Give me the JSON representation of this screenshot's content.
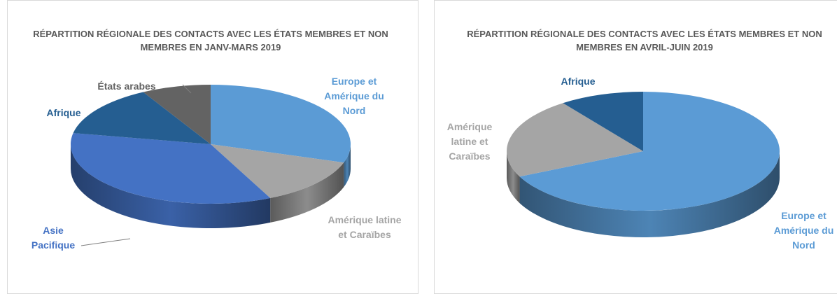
{
  "chart_data": [
    {
      "type": "pie",
      "title": "RÉPARTITION RÉGIONALE DES CONTACTS AVEC LES ÉTATS MEMBRES ET NON MEMBRES EN JANV-MARS 2019",
      "categories": [
        "Europe et Amérique du Nord",
        "Amérique latine et Caraïbes",
        "Asie Pacifique",
        "Afrique",
        "États arabes"
      ],
      "values": [
        30,
        13,
        35,
        14,
        8
      ],
      "colors": [
        "#5b9bd5",
        "#a5a5a5",
        "#4472c4",
        "#255e91",
        "#636363"
      ]
    },
    {
      "type": "pie",
      "title": "RÉPARTITION RÉGIONALE DES CONTACTS AVEC LES ÉTATS MEMBRES ET NON MEMBRES EN AVRIL-JUIN 2019",
      "categories": [
        "Europe et Amérique du Nord",
        "Amérique latine et Caraïbes",
        "Afrique"
      ],
      "values": [
        68,
        22,
        10
      ],
      "colors": [
        "#5b9bd5",
        "#a5a5a5",
        "#255e91"
      ]
    }
  ]
}
